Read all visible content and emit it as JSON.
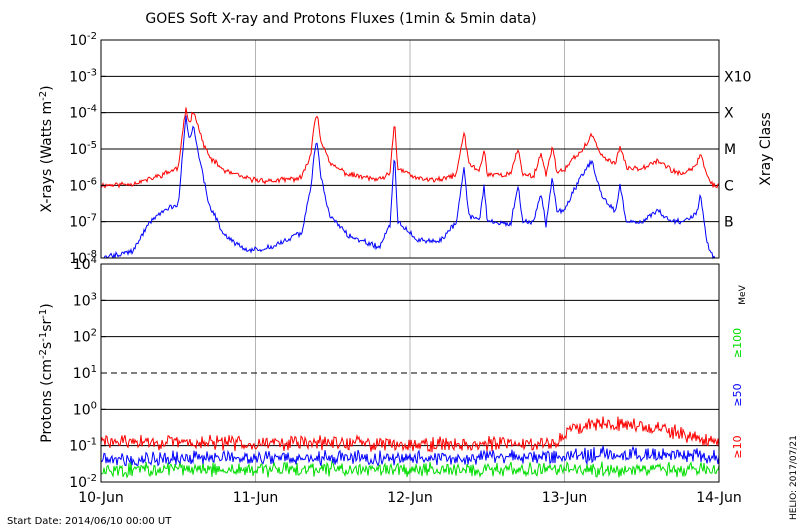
{
  "title": "GOES Soft X-ray and Protons Fluxes   (1min & 5min data)",
  "start_date_label": "Start Date: 2014/06/10 00:00 UT",
  "credit": "HELIO: 2017/07/21",
  "colors": {
    "xray_long": "#ff0000",
    "xray_short": "#0000ff",
    "proton_10": "#ff0000",
    "proton_50": "#0000ff",
    "proton_100": "#00dd00",
    "gridline": "#000000",
    "dayline": "#b4b4b4"
  },
  "chart_data": [
    {
      "type": "line",
      "panel": "xray",
      "ylabel": "X-rays (Watts m^-2)",
      "yscale": "log",
      "ylim": [
        1e-08,
        0.01
      ],
      "y_ticks": [
        "10^-8",
        "10^-7",
        "10^-6",
        "10^-5",
        "10^-4",
        "10^-3",
        "10^-2"
      ],
      "x_ticks": [
        "10-Jun",
        "11-Jun",
        "12-Jun",
        "13-Jun",
        "14-Jun"
      ],
      "xlim_days": [
        0,
        4
      ],
      "class_axis_label": "Xray Class",
      "class_labels": [
        {
          "label": "B",
          "value": 1e-07
        },
        {
          "label": "C",
          "value": 1e-06
        },
        {
          "label": "M",
          "value": 1e-05
        },
        {
          "label": "X",
          "value": 0.0001
        },
        {
          "label": "X10",
          "value": 0.001
        }
      ],
      "series": [
        {
          "name": "long",
          "color": "#ff0000",
          "points": [
            [
              0.0,
              1e-06
            ],
            [
              0.2,
              1.1e-06
            ],
            [
              0.32,
              1.5e-06
            ],
            [
              0.4,
              2e-06
            ],
            [
              0.5,
              3e-06
            ],
            [
              0.55,
              0.00014
            ],
            [
              0.57,
              5e-05
            ],
            [
              0.6,
              0.00012
            ],
            [
              0.65,
              2e-05
            ],
            [
              0.7,
              6e-06
            ],
            [
              0.8,
              2.5e-06
            ],
            [
              0.95,
              1.5e-06
            ],
            [
              1.1,
              1.3e-06
            ],
            [
              1.3,
              1.6e-06
            ],
            [
              1.36,
              8e-06
            ],
            [
              1.38,
              5e-05
            ],
            [
              1.4,
              0.0001
            ],
            [
              1.42,
              2e-05
            ],
            [
              1.48,
              4e-06
            ],
            [
              1.6,
              2e-06
            ],
            [
              1.8,
              1.4e-06
            ],
            [
              1.87,
              2e-06
            ],
            [
              1.9,
              6e-05
            ],
            [
              1.92,
              3e-06
            ],
            [
              2.05,
              1.5e-06
            ],
            [
              2.2,
              1.4e-06
            ],
            [
              2.3,
              2e-06
            ],
            [
              2.35,
              3e-05
            ],
            [
              2.38,
              4e-06
            ],
            [
              2.45,
              2.5e-06
            ],
            [
              2.48,
              1e-05
            ],
            [
              2.5,
              2e-06
            ],
            [
              2.65,
              2e-06
            ],
            [
              2.7,
              1e-05
            ],
            [
              2.73,
              2e-06
            ],
            [
              2.8,
              1.8e-06
            ],
            [
              2.85,
              8e-06
            ],
            [
              2.88,
              1.8e-06
            ],
            [
              2.92,
              1.2e-05
            ],
            [
              2.95,
              2.5e-06
            ],
            [
              3.0,
              2.5e-06
            ],
            [
              3.05,
              5e-06
            ],
            [
              3.1,
              8e-06
            ],
            [
              3.15,
              1.5e-05
            ],
            [
              3.18,
              2.5e-05
            ],
            [
              3.2,
              1.5e-05
            ],
            [
              3.25,
              6e-06
            ],
            [
              3.33,
              4e-06
            ],
            [
              3.36,
              1.2e-05
            ],
            [
              3.4,
              3e-06
            ],
            [
              3.5,
              3e-06
            ],
            [
              3.6,
              5e-06
            ],
            [
              3.7,
              2.5e-06
            ],
            [
              3.78,
              2e-06
            ],
            [
              3.86,
              4e-06
            ],
            [
              3.88,
              8e-06
            ],
            [
              3.92,
              2e-06
            ],
            [
              3.96,
              1e-06
            ],
            [
              4.0,
              1e-06
            ]
          ]
        },
        {
          "name": "short",
          "color": "#0000ff",
          "points": [
            [
              0.0,
              1e-08
            ],
            [
              0.2,
              1.5e-08
            ],
            [
              0.32,
              1e-07
            ],
            [
              0.4,
              2e-07
            ],
            [
              0.5,
              3e-07
            ],
            [
              0.55,
              8e-05
            ],
            [
              0.57,
              2e-05
            ],
            [
              0.6,
              4e-05
            ],
            [
              0.65,
              3e-06
            ],
            [
              0.7,
              3e-07
            ],
            [
              0.8,
              4e-08
            ],
            [
              0.95,
              1.5e-08
            ],
            [
              1.1,
              2e-08
            ],
            [
              1.3,
              5e-08
            ],
            [
              1.36,
              1e-06
            ],
            [
              1.38,
              8e-06
            ],
            [
              1.4,
              1.5e-05
            ],
            [
              1.42,
              2e-06
            ],
            [
              1.48,
              1.5e-07
            ],
            [
              1.6,
              4e-08
            ],
            [
              1.8,
              2e-08
            ],
            [
              1.87,
              8e-08
            ],
            [
              1.9,
              8e-06
            ],
            [
              1.92,
              1e-07
            ],
            [
              2.05,
              3e-08
            ],
            [
              2.2,
              3e-08
            ],
            [
              2.3,
              1e-07
            ],
            [
              2.35,
              3e-06
            ],
            [
              2.38,
              1.5e-07
            ],
            [
              2.45,
              1e-07
            ],
            [
              2.48,
              1e-06
            ],
            [
              2.5,
              1e-07
            ],
            [
              2.65,
              8e-08
            ],
            [
              2.7,
              1e-06
            ],
            [
              2.73,
              1e-07
            ],
            [
              2.8,
              1e-07
            ],
            [
              2.85,
              6e-07
            ],
            [
              2.88,
              8e-08
            ],
            [
              2.92,
              1.5e-06
            ],
            [
              2.95,
              2e-07
            ],
            [
              3.0,
              2e-07
            ],
            [
              3.05,
              6e-07
            ],
            [
              3.1,
              1.5e-06
            ],
            [
              3.15,
              3e-06
            ],
            [
              3.18,
              5e-06
            ],
            [
              3.2,
              2e-06
            ],
            [
              3.25,
              4e-07
            ],
            [
              3.33,
              2e-07
            ],
            [
              3.36,
              1e-06
            ],
            [
              3.4,
              1e-07
            ],
            [
              3.5,
              1e-07
            ],
            [
              3.6,
              2e-07
            ],
            [
              3.7,
              1e-07
            ],
            [
              3.78,
              1e-07
            ],
            [
              3.86,
              2e-07
            ],
            [
              3.88,
              6e-07
            ],
            [
              3.92,
              3e-08
            ],
            [
              3.96,
              1e-08
            ],
            [
              4.0,
              1e-08
            ]
          ]
        }
      ]
    },
    {
      "type": "line",
      "panel": "protons",
      "ylabel": "Protons (cm^-2 s^-1 sr^-1)",
      "yscale": "log",
      "ylim": [
        0.01,
        10000
      ],
      "y_ticks": [
        "10^-2",
        "10^-1",
        "10^0",
        "10^1",
        "10^2",
        "10^3",
        "10^4"
      ],
      "x_ticks": [
        "10-Jun",
        "11-Jun",
        "12-Jun",
        "13-Jun",
        "14-Jun"
      ],
      "xlim_days": [
        0,
        4
      ],
      "threshold_line": 10,
      "legend_unit": "MeV",
      "series": [
        {
          "name": "≥10",
          "color": "#ff0000",
          "points": [
            [
              0.0,
              0.13
            ],
            [
              0.5,
              0.12
            ],
            [
              1.0,
              0.12
            ],
            [
              1.5,
              0.12
            ],
            [
              2.0,
              0.11
            ],
            [
              2.5,
              0.11
            ],
            [
              2.95,
              0.12
            ],
            [
              3.05,
              0.3
            ],
            [
              3.2,
              0.45
            ],
            [
              3.4,
              0.4
            ],
            [
              3.6,
              0.3
            ],
            [
              3.8,
              0.18
            ],
            [
              4.0,
              0.13
            ]
          ]
        },
        {
          "name": "≥50",
          "color": "#0000ff",
          "points": [
            [
              0.0,
              0.045
            ],
            [
              1.0,
              0.045
            ],
            [
              2.0,
              0.045
            ],
            [
              3.0,
              0.05
            ],
            [
              3.3,
              0.06
            ],
            [
              4.0,
              0.05
            ]
          ]
        },
        {
          "name": "≥100",
          "color": "#00dd00",
          "points": [
            [
              0.0,
              0.022
            ],
            [
              1.0,
              0.022
            ],
            [
              2.0,
              0.022
            ],
            [
              3.0,
              0.022
            ],
            [
              4.0,
              0.022
            ]
          ]
        }
      ]
    }
  ]
}
